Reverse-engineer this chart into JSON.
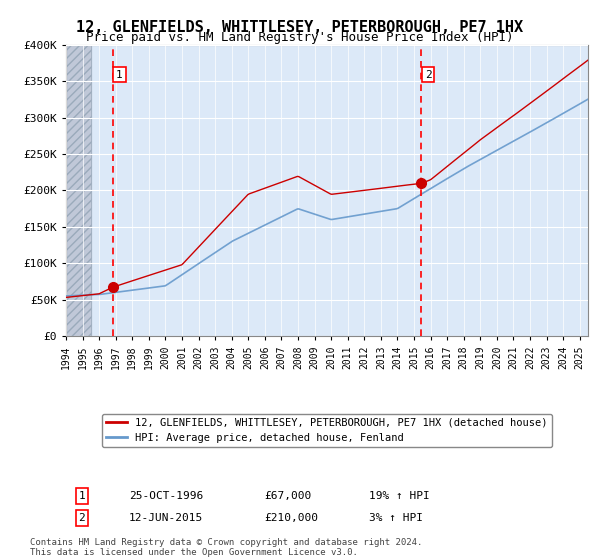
{
  "title": "12, GLENFIELDS, WHITTLESEY, PETERBOROUGH, PE7 1HX",
  "subtitle": "Price paid vs. HM Land Registry's House Price Index (HPI)",
  "legend_line1": "12, GLENFIELDS, WHITTLESEY, PETERBOROUGH, PE7 1HX (detached house)",
  "legend_line2": "HPI: Average price, detached house, Fenland",
  "sale1_label": "1",
  "sale1_date": "25-OCT-1996",
  "sale1_price": "£67,000",
  "sale1_hpi": "19% ↑ HPI",
  "sale1_year": 1996.82,
  "sale1_value": 67000,
  "sale2_label": "2",
  "sale2_date": "12-JUN-2015",
  "sale2_price": "£210,000",
  "sale2_hpi": "3% ↑ HPI",
  "sale2_year": 2015.45,
  "sale2_value": 210000,
  "xmin": 1994,
  "xmax": 2025.5,
  "ymin": 0,
  "ymax": 400000,
  "hatch_end": 1995.5,
  "bg_color": "#dce9f8",
  "hatch_color": "#c0c8d8",
  "grid_color": "#ffffff",
  "red_line_color": "#cc0000",
  "blue_line_color": "#6699cc",
  "title_fontsize": 11,
  "subtitle_fontsize": 9,
  "footer": "Contains HM Land Registry data © Crown copyright and database right 2024.\nThis data is licensed under the Open Government Licence v3.0."
}
